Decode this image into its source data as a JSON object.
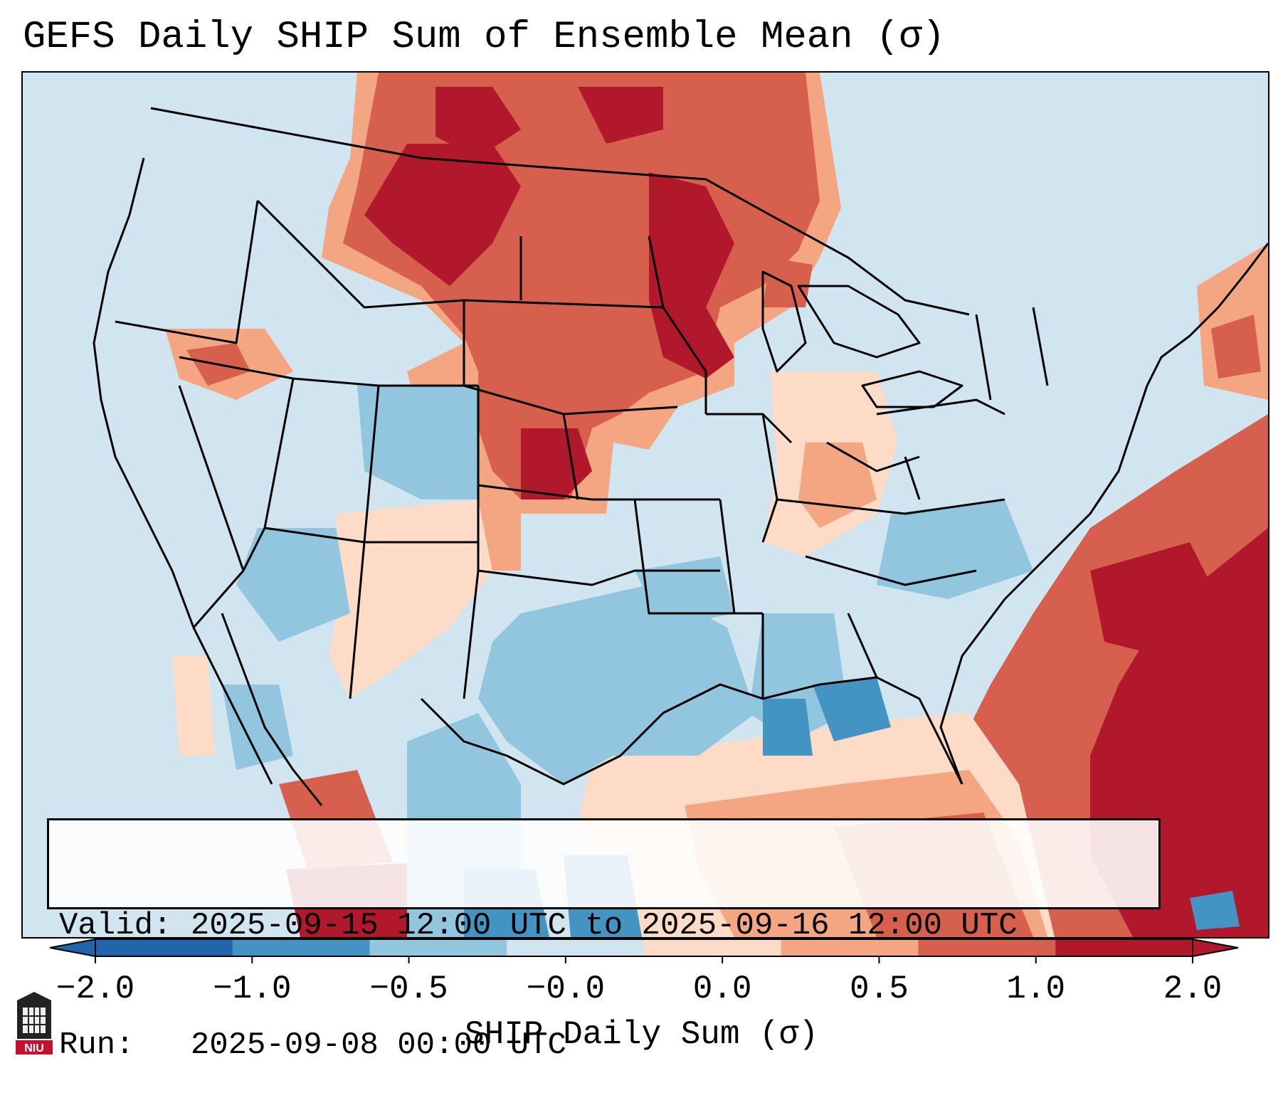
{
  "title": "GEFS Daily SHIP Sum of Ensemble Mean (σ)",
  "info": {
    "valid_line": "Valid: 2025-09-15 12:00 UTC to 2025-09-16 12:00 UTC",
    "run_line": "Run:   2025-09-08 00:00 UTC"
  },
  "colorbar": {
    "label": "SHIP Daily Sum (σ)",
    "tick_labels": [
      "−2.0",
      "−1.0",
      "−0.5",
      "−0.0",
      "0.0",
      "0.5",
      "1.0",
      "2.0"
    ],
    "colors": [
      "#2166ac",
      "#4393c3",
      "#92c5de",
      "#d1e5f0",
      "#fddbc7",
      "#f4a582",
      "#d6604d",
      "#b2182b"
    ],
    "extend": "both"
  },
  "logo": {
    "text": "NIU"
  }
}
